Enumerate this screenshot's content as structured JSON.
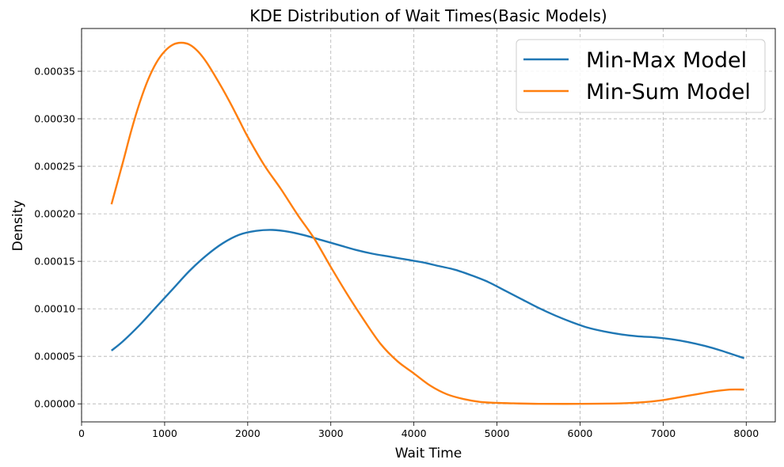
{
  "chart_data": {
    "type": "line",
    "title": "KDE Distribution of Wait Times(Basic Models)",
    "xlabel": "Wait Time",
    "ylabel": "Density",
    "xlim": [
      0,
      8350
    ],
    "ylim": [
      -1.9e-05,
      0.000395
    ],
    "xticks": [
      0,
      1000,
      2000,
      3000,
      4000,
      5000,
      6000,
      7000,
      8000
    ],
    "yticks": [
      0.0,
      5e-05,
      0.0001,
      0.00015,
      0.0002,
      0.00025,
      0.0003,
      0.00035
    ],
    "xtick_labels": [
      "0",
      "1000",
      "2000",
      "3000",
      "4000",
      "5000",
      "6000",
      "7000",
      "8000"
    ],
    "ytick_labels": [
      "0.00000",
      "0.00005",
      "0.00010",
      "0.00015",
      "0.00020",
      "0.00025",
      "0.00030",
      "0.00035"
    ],
    "grid": true,
    "legend_position": "top-right",
    "series": [
      {
        "name": "Min-Max Model",
        "color": "#1f77b4",
        "x": [
          360,
          500,
          700,
          900,
          1100,
          1300,
          1500,
          1700,
          1900,
          2100,
          2300,
          2500,
          2700,
          2900,
          3100,
          3300,
          3500,
          3700,
          3900,
          4100,
          4300,
          4500,
          4700,
          4900,
          5100,
          5300,
          5500,
          5700,
          5900,
          6100,
          6300,
          6500,
          6700,
          6900,
          7100,
          7300,
          7500,
          7700,
          7975
        ],
        "y": [
          5.6e-05,
          6.6e-05,
          8.3e-05,
          0.000102,
          0.000121,
          0.00014,
          0.000156,
          0.000169,
          0.000178,
          0.000182,
          0.000183,
          0.000181,
          0.000177,
          0.000172,
          0.000167,
          0.000162,
          0.000158,
          0.000155,
          0.000152,
          0.000149,
          0.000145,
          0.000141,
          0.000135,
          0.000128,
          0.000119,
          0.00011,
          0.000101,
          9.3e-05,
          8.6e-05,
          8e-05,
          7.6e-05,
          7.3e-05,
          7.1e-05,
          7e-05,
          6.8e-05,
          6.5e-05,
          6.1e-05,
          5.6e-05,
          4.8e-05
        ]
      },
      {
        "name": "Min-Sum Model",
        "color": "#ff7f0e",
        "x": [
          360,
          500,
          600,
          700,
          800,
          900,
          1000,
          1100,
          1200,
          1300,
          1400,
          1500,
          1600,
          1700,
          1800,
          1900,
          2000,
          2200,
          2400,
          2600,
          2800,
          3000,
          3200,
          3400,
          3600,
          3800,
          4000,
          4200,
          4400,
          4600,
          4800,
          5000,
          5200,
          5500,
          6000,
          6500,
          6800,
          7000,
          7200,
          7400,
          7600,
          7800,
          7975
        ],
        "y": [
          0.00021,
          0.000255,
          0.000288,
          0.000317,
          0.000341,
          0.000359,
          0.000371,
          0.000378,
          0.00038,
          0.000378,
          0.000371,
          0.00036,
          0.000346,
          0.000331,
          0.000315,
          0.000298,
          0.000281,
          0.000251,
          0.000226,
          0.000199,
          0.000174,
          0.000144,
          0.000115,
          8.8e-05,
          6.3e-05,
          4.5e-05,
          3.2e-05,
          1.9e-05,
          1e-05,
          5e-06,
          2e-06,
          1e-06,
          5e-07,
          0.0,
          0.0,
          5e-07,
          2e-06,
          4e-06,
          7e-06,
          1e-05,
          1.3e-05,
          1.5e-05,
          1.5e-05
        ]
      }
    ]
  }
}
